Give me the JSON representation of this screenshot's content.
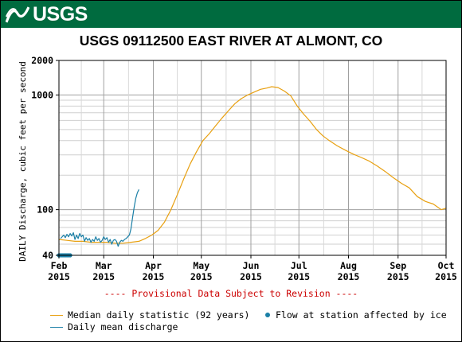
{
  "header": {
    "logo_text": "USGS",
    "brand_color": "#006b3f"
  },
  "chart_data": {
    "type": "line",
    "title": "USGS 09112500 EAST RIVER AT ALMONT, CO",
    "ylabel": "DAILY Discharge, cubic feet per second",
    "xlabel": "",
    "y_scale": "log",
    "ylim": [
      40,
      2000
    ],
    "y_ticks": [
      {
        "value": 40,
        "label": "40"
      },
      {
        "value": 100,
        "label": "100"
      },
      {
        "value": 1000,
        "label": "1000"
      },
      {
        "value": 2000,
        "label": "2000"
      }
    ],
    "xlim": [
      "2015-02-01",
      "2015-10-01"
    ],
    "x_ticks": [
      {
        "date": "2015-02-01",
        "label1": "Feb",
        "label2": "2015"
      },
      {
        "date": "2015-03-01",
        "label1": "Mar",
        "label2": "2015"
      },
      {
        "date": "2015-04-01",
        "label1": "Apr",
        "label2": "2015"
      },
      {
        "date": "2015-05-01",
        "label1": "May",
        "label2": "2015"
      },
      {
        "date": "2015-06-01",
        "label1": "Jun",
        "label2": "2015"
      },
      {
        "date": "2015-07-01",
        "label1": "Jul",
        "label2": "2015"
      },
      {
        "date": "2015-08-01",
        "label1": "Aug",
        "label2": "2015"
      },
      {
        "date": "2015-09-01",
        "label1": "Sep",
        "label2": "2015"
      },
      {
        "date": "2015-10-01",
        "label1": "Oct",
        "label2": "2015"
      }
    ],
    "grid": true,
    "series": [
      {
        "name": "Median daily statistic (92 years)",
        "color": "#e8a010",
        "kind": "line",
        "points": [
          [
            "2015-02-01",
            55
          ],
          [
            "2015-02-06",
            54
          ],
          [
            "2015-02-11",
            53
          ],
          [
            "2015-02-16",
            53
          ],
          [
            "2015-02-21",
            52
          ],
          [
            "2015-02-26",
            52
          ],
          [
            "2015-03-03",
            52
          ],
          [
            "2015-03-08",
            51
          ],
          [
            "2015-03-13",
            51
          ],
          [
            "2015-03-18",
            52
          ],
          [
            "2015-03-23",
            53
          ],
          [
            "2015-03-27",
            56
          ],
          [
            "2015-03-31",
            60
          ],
          [
            "2015-04-04",
            66
          ],
          [
            "2015-04-08",
            78
          ],
          [
            "2015-04-12",
            100
          ],
          [
            "2015-04-16",
            135
          ],
          [
            "2015-04-20",
            185
          ],
          [
            "2015-04-24",
            250
          ],
          [
            "2015-04-28",
            320
          ],
          [
            "2015-05-02",
            400
          ],
          [
            "2015-05-06",
            460
          ],
          [
            "2015-05-10",
            540
          ],
          [
            "2015-05-14",
            630
          ],
          [
            "2015-05-18",
            730
          ],
          [
            "2015-05-22",
            840
          ],
          [
            "2015-05-26",
            930
          ],
          [
            "2015-05-30",
            1000
          ],
          [
            "2015-06-03",
            1060
          ],
          [
            "2015-06-07",
            1120
          ],
          [
            "2015-06-11",
            1150
          ],
          [
            "2015-06-14",
            1180
          ],
          [
            "2015-06-18",
            1160
          ],
          [
            "2015-06-22",
            1080
          ],
          [
            "2015-06-26",
            980
          ],
          [
            "2015-06-30",
            800
          ],
          [
            "2015-07-04",
            680
          ],
          [
            "2015-07-08",
            590
          ],
          [
            "2015-07-12",
            500
          ],
          [
            "2015-07-16",
            440
          ],
          [
            "2015-07-20",
            400
          ],
          [
            "2015-07-25",
            360
          ],
          [
            "2015-07-30",
            330
          ],
          [
            "2015-08-04",
            305
          ],
          [
            "2015-08-09",
            285
          ],
          [
            "2015-08-14",
            265
          ],
          [
            "2015-08-19",
            240
          ],
          [
            "2015-08-24",
            215
          ],
          [
            "2015-08-29",
            190
          ],
          [
            "2015-09-03",
            170
          ],
          [
            "2015-09-08",
            155
          ],
          [
            "2015-09-13",
            130
          ],
          [
            "2015-09-18",
            118
          ],
          [
            "2015-09-23",
            112
          ],
          [
            "2015-09-28",
            100
          ],
          [
            "2015-10-01",
            103
          ]
        ]
      },
      {
        "name": "Daily mean discharge",
        "color": "#1a7fa6",
        "kind": "line",
        "points": [
          [
            "2015-02-02",
            56
          ],
          [
            "2015-02-04",
            60
          ],
          [
            "2015-02-05",
            57
          ],
          [
            "2015-02-06",
            61
          ],
          [
            "2015-02-07",
            58
          ],
          [
            "2015-02-08",
            62
          ],
          [
            "2015-02-09",
            59
          ],
          [
            "2015-02-10",
            63
          ],
          [
            "2015-02-11",
            55
          ],
          [
            "2015-02-12",
            60
          ],
          [
            "2015-02-13",
            56
          ],
          [
            "2015-02-14",
            62
          ],
          [
            "2015-02-15",
            58
          ],
          [
            "2015-02-16",
            60
          ],
          [
            "2015-02-17",
            53
          ],
          [
            "2015-02-18",
            57
          ],
          [
            "2015-02-19",
            54
          ],
          [
            "2015-02-20",
            56
          ],
          [
            "2015-02-21",
            52
          ],
          [
            "2015-02-22",
            55
          ],
          [
            "2015-02-23",
            53
          ],
          [
            "2015-02-24",
            58
          ],
          [
            "2015-02-25",
            54
          ],
          [
            "2015-02-26",
            56
          ],
          [
            "2015-02-27",
            52
          ],
          [
            "2015-02-28",
            54
          ],
          [
            "2015-03-01",
            58
          ],
          [
            "2015-03-02",
            55
          ],
          [
            "2015-03-03",
            57
          ],
          [
            "2015-03-04",
            52
          ],
          [
            "2015-03-05",
            55
          ],
          [
            "2015-03-06",
            50
          ],
          [
            "2015-03-07",
            54
          ],
          [
            "2015-03-08",
            55
          ],
          [
            "2015-03-09",
            53
          ],
          [
            "2015-03-10",
            48
          ],
          [
            "2015-03-11",
            52
          ],
          [
            "2015-03-12",
            54
          ],
          [
            "2015-03-13",
            53
          ],
          [
            "2015-03-14",
            55
          ],
          [
            "2015-03-15",
            56
          ],
          [
            "2015-03-16",
            58
          ],
          [
            "2015-03-17",
            60
          ],
          [
            "2015-03-18",
            68
          ],
          [
            "2015-03-19",
            85
          ],
          [
            "2015-03-20",
            105
          ],
          [
            "2015-03-21",
            125
          ],
          [
            "2015-03-22",
            140
          ],
          [
            "2015-03-23",
            150
          ]
        ]
      },
      {
        "name": "Flow at station affected by ice",
        "color": "#1a7fa6",
        "kind": "markers",
        "points": [
          [
            "2015-02-01",
            40
          ],
          [
            "2015-02-02",
            40
          ],
          [
            "2015-02-03",
            40
          ],
          [
            "2015-02-04",
            40
          ],
          [
            "2015-02-05",
            40
          ],
          [
            "2015-02-06",
            40
          ],
          [
            "2015-02-07",
            40
          ],
          [
            "2015-02-08",
            40
          ]
        ]
      }
    ],
    "legend": {
      "placement": "bottom",
      "items": [
        {
          "label": "Median daily statistic (92 years)",
          "color": "#e8a010",
          "swatch": "line"
        },
        {
          "label": "Flow at station affected by ice",
          "color": "#1a7fa6",
          "swatch": "dot"
        },
        {
          "label": "Daily mean discharge",
          "color": "#1a7fa6",
          "swatch": "line"
        }
      ]
    },
    "annotation": "---- Provisional Data Subject to Revision ----"
  }
}
